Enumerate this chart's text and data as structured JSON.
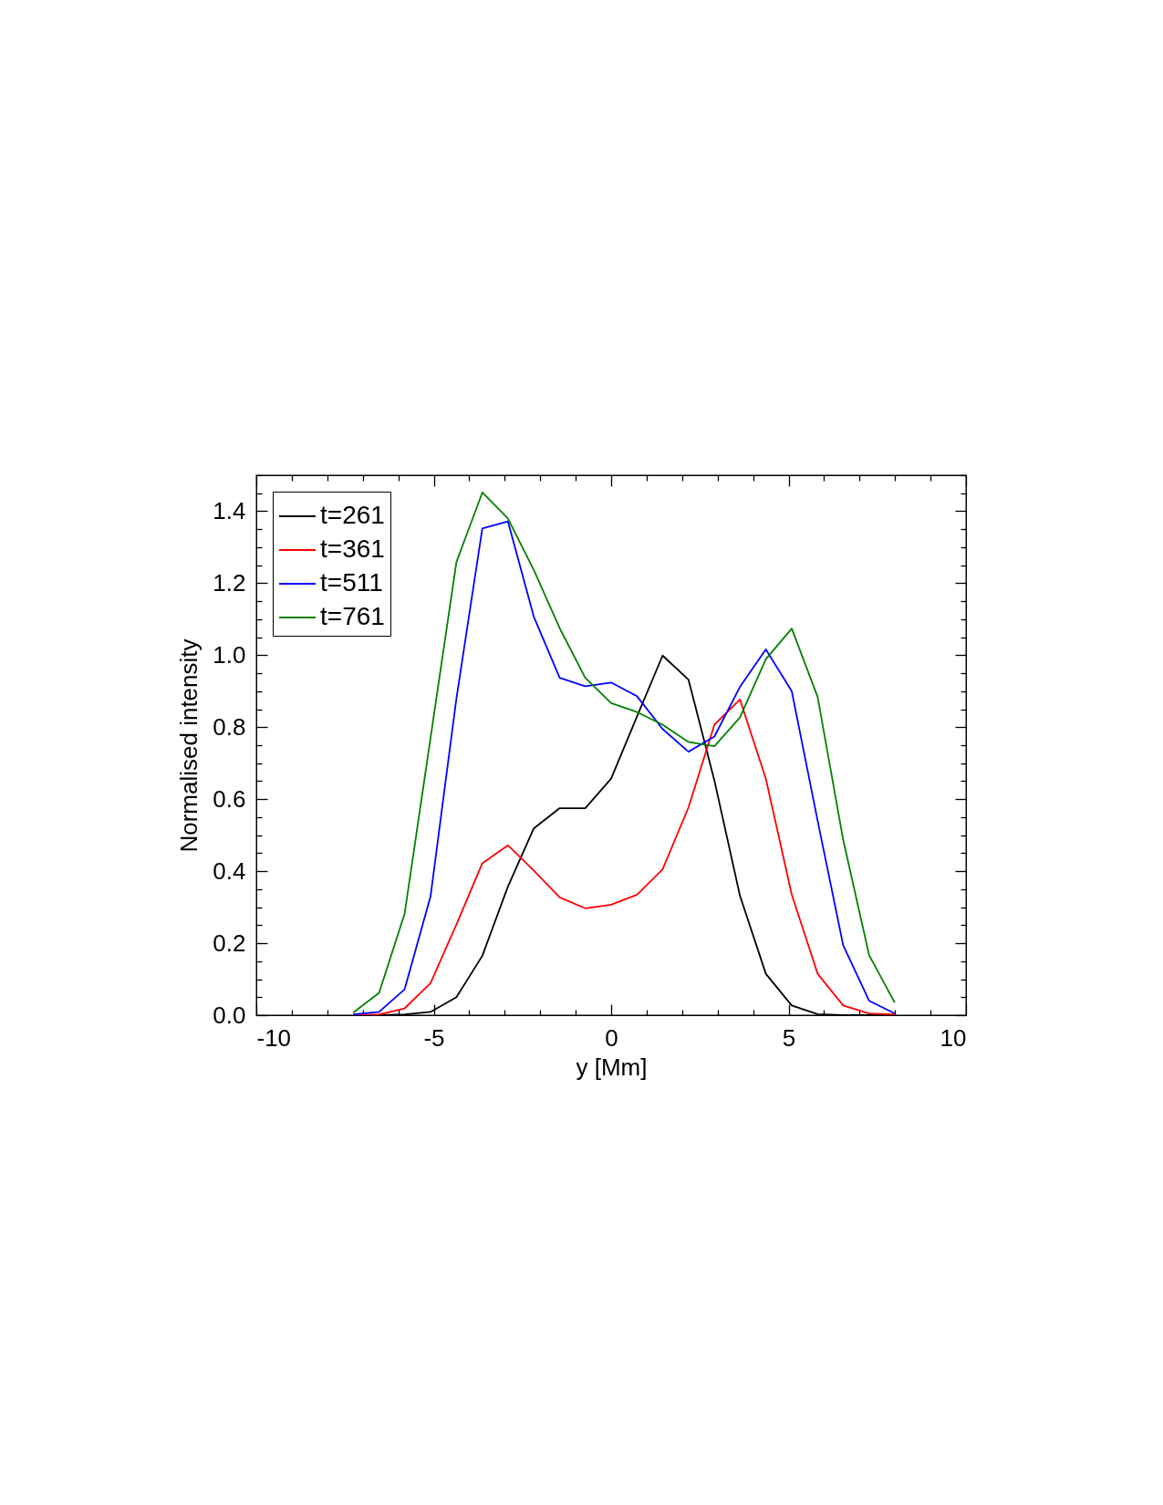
{
  "chart_data": {
    "type": "line",
    "xlabel": "y [Mm]",
    "ylabel": "Normalised intensity",
    "x": [
      -7.27,
      -6.54,
      -5.82,
      -5.09,
      -4.36,
      -3.63,
      -2.91,
      -2.18,
      -1.45,
      -0.73,
      0,
      0.73,
      1.45,
      2.18,
      2.91,
      3.63,
      4.36,
      5.09,
      5.82,
      6.54,
      7.27,
      7.99
    ],
    "series": [
      {
        "name": "t=261",
        "color": "#000000",
        "values": [
          null,
          0,
          0.002,
          0.009,
          0.05,
          0.165,
          0.357,
          0.519,
          0.575,
          0.575,
          0.657,
          0.83,
          0.999,
          0.932,
          0.652,
          0.332,
          0.115,
          0.027,
          0.003,
          0,
          0,
          0
        ]
      },
      {
        "name": "t=361",
        "color": "#ff0000",
        "values": [
          0,
          0.002,
          0.019,
          0.089,
          0.252,
          0.422,
          0.472,
          0.402,
          0.327,
          0.297,
          0.307,
          0.335,
          0.405,
          0.577,
          0.807,
          0.877,
          0.657,
          0.335,
          0.115,
          0.027,
          0.005,
          0.002
        ]
      },
      {
        "name": "t=511",
        "color": "#0000ff",
        "values": [
          0.002,
          0.009,
          0.072,
          0.33,
          0.88,
          1.352,
          1.372,
          1.107,
          0.937,
          0.914,
          0.924,
          0.886,
          0.795,
          0.732,
          0.774,
          0.912,
          1.016,
          0.9,
          0.54,
          0.194,
          0.04,
          0.005
        ]
      },
      {
        "name": "t=761",
        "color": "#008000",
        "values": [
          0.007,
          0.062,
          0.282,
          0.77,
          1.259,
          1.452,
          1.38,
          1.237,
          1.075,
          0.937,
          0.867,
          0.842,
          0.807,
          0.759,
          0.747,
          0.827,
          0.989,
          1.074,
          0.884,
          0.487,
          0.167,
          0.035
        ]
      }
    ],
    "xlim": [
      -10,
      10
    ],
    "xticks": [
      -10,
      {
        "value": -9,
        "label": null
      },
      {
        "value": -8,
        "label": null
      },
      {
        "value": -7,
        "label": null
      },
      {
        "value": -6,
        "label": null
      },
      -5,
      {
        "value": -4,
        "label": null
      },
      {
        "value": -3,
        "label": null
      },
      {
        "value": -2,
        "label": null
      },
      {
        "value": -1,
        "label": null
      },
      0,
      {
        "value": 1,
        "label": null
      },
      {
        "value": 2,
        "label": null
      },
      {
        "value": 3,
        "label": null
      },
      {
        "value": 4,
        "label": null
      },
      5,
      {
        "value": 6,
        "label": null
      },
      {
        "value": 7,
        "label": null
      },
      {
        "value": 8,
        "label": null
      },
      {
        "value": 9,
        "label": null
      },
      10
    ],
    "ylim": [
      0,
      1.5
    ],
    "yticks": [
      {
        "value": 0,
        "label": "0.0"
      },
      {
        "value": 0.05,
        "label": null
      },
      {
        "value": 0.1,
        "label": null
      },
      {
        "value": 0.15,
        "label": null
      },
      0.2,
      {
        "value": 0.25,
        "label": null
      },
      {
        "value": 0.3,
        "label": null
      },
      {
        "value": 0.35,
        "label": null
      },
      0.4,
      {
        "value": 0.45,
        "label": null
      },
      {
        "value": 0.5,
        "label": null
      },
      {
        "value": 0.55,
        "label": null
      },
      0.6,
      {
        "value": 0.65,
        "label": null
      },
      {
        "value": 0.7,
        "label": null
      },
      {
        "value": 0.75,
        "label": null
      },
      0.8,
      {
        "value": 0.85,
        "label": null
      },
      {
        "value": 0.9,
        "label": null
      },
      {
        "value": 0.95,
        "label": null
      },
      {
        "value": 1,
        "label": "1.0"
      },
      {
        "value": 1.05,
        "label": null
      },
      {
        "value": 1.1,
        "label": null
      },
      {
        "value": 1.15,
        "label": null
      },
      1.2,
      {
        "value": 1.25,
        "label": null
      },
      {
        "value": 1.3,
        "label": null
      },
      {
        "value": 1.35,
        "label": null
      },
      1.4,
      {
        "value": 1.45,
        "label": null
      },
      {
        "value": 1.5,
        "label": null
      }
    ],
    "grid": false,
    "legend": "top left",
    "line_style": "solid"
  }
}
